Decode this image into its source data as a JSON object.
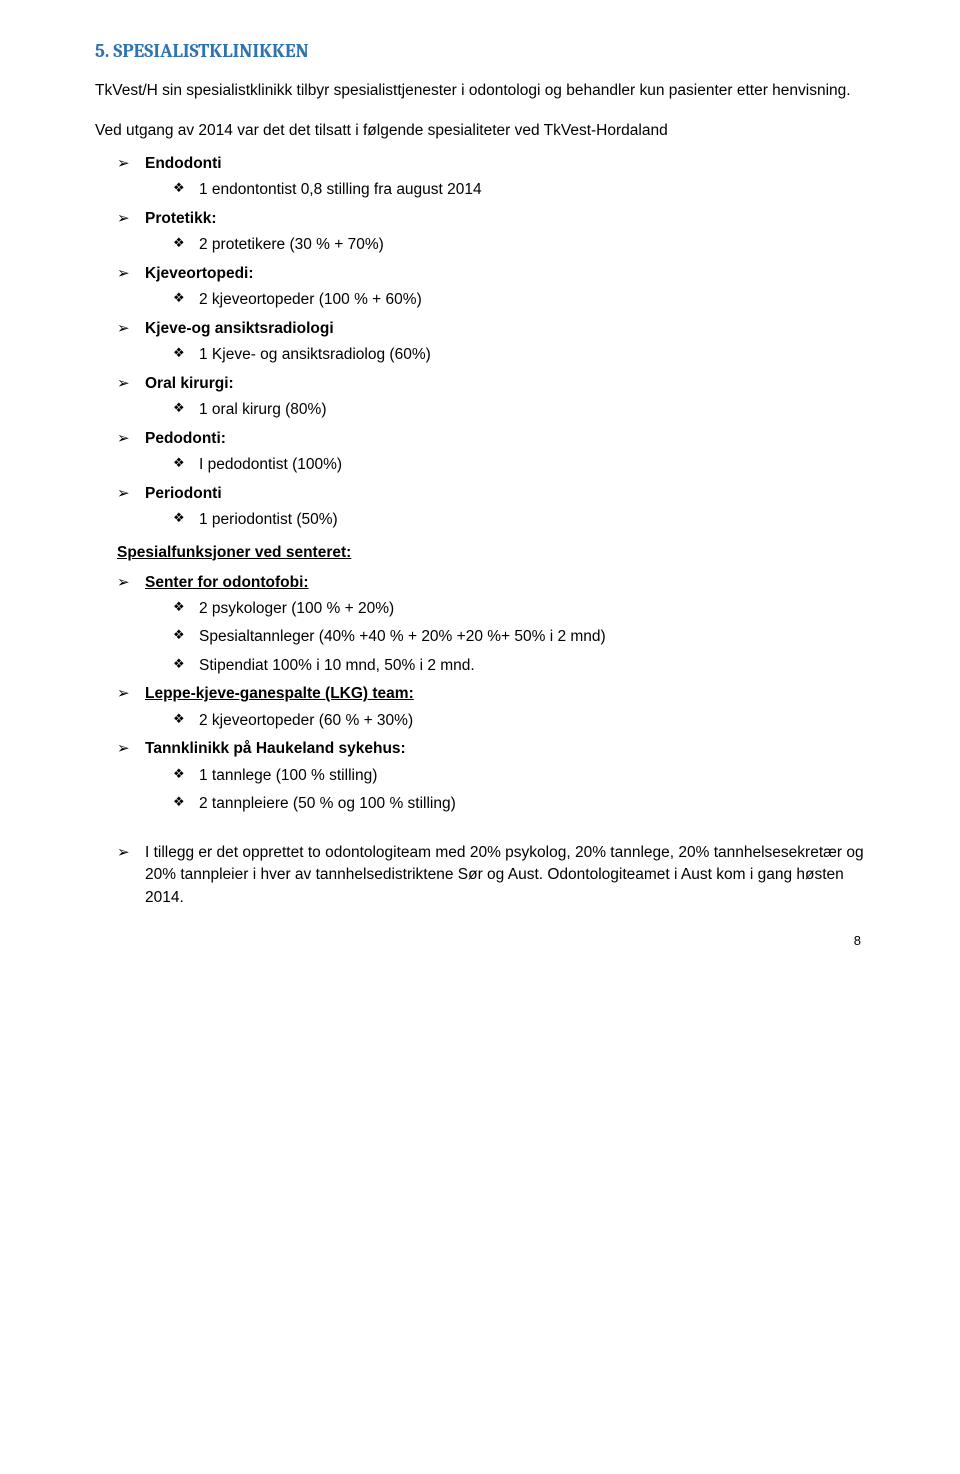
{
  "heading": "5. SPESIALISTKLINIKKEN",
  "intro": "TkVest/H sin spesialistklinikk tilbyr spesialisttjenester i odontologi og behandler kun pasienter etter henvisning.",
  "intro2": "Ved utgang av 2014 var det det tilsatt i følgende spesialiteter ved TkVest-Hordaland",
  "specialties": [
    {
      "label": "Endodonti",
      "bold": true,
      "items": [
        "1 endontontist 0,8 stilling fra august 2014"
      ]
    },
    {
      "label": "Protetikk:",
      "bold": true,
      "items": [
        "2 protetikere (30 % + 70%)"
      ]
    },
    {
      "label": "Kjeveortopedi:",
      "bold": true,
      "items": [
        "2 kjeveortopeder (100 % + 60%)"
      ]
    },
    {
      "label": "Kjeve-og ansiktsradiologi",
      "bold": true,
      "items": [
        "1 Kjeve- og ansiktsradiolog (60%)"
      ]
    },
    {
      "label": "Oral kirurgi:",
      "bold": true,
      "items": [
        "1 oral kirurg (80%)"
      ]
    },
    {
      "label": "Pedodonti:",
      "bold": true,
      "items": [
        "I pedodontist (100%)"
      ]
    },
    {
      "label": "Periodonti",
      "bold": true,
      "items": [
        "1 periodontist (50%)"
      ]
    }
  ],
  "spesialfunksjoner_heading": "Spesialfunksjoner ved senteret:",
  "senter": {
    "label": "Senter for odontofobi:",
    "items": [
      "2  psykologer (100 % + 20%)",
      "Spesialtannleger (40% +40 % + 20% +20 %+ 50% i 2 mnd)",
      "Stipendiat 100% i 10 mnd, 50% i 2 mnd."
    ]
  },
  "lkg": {
    "label": "Leppe-kjeve-ganespalte (LKG) team:",
    "items": [
      "2 kjeveortopeder (60 % + 30%)"
    ]
  },
  "haukeland": {
    "label": "Tannklinikk på Haukeland sykehus:",
    "items": [
      "1 tannlege (100 % stilling)",
      "2 tannpleiere (50 % og 100 % stilling)"
    ]
  },
  "tillegg": {
    "bullet": "I tillegg er det opprettet to odontologiteam med 20%  psykolog, 20% tannlege, 20% tannhelsesekretær og 20% tannpleier i hver av tannhelsedistriktene Sør og Aust. Odontologiteamet i Aust kom i gang høsten 2014."
  },
  "page_number": "8"
}
